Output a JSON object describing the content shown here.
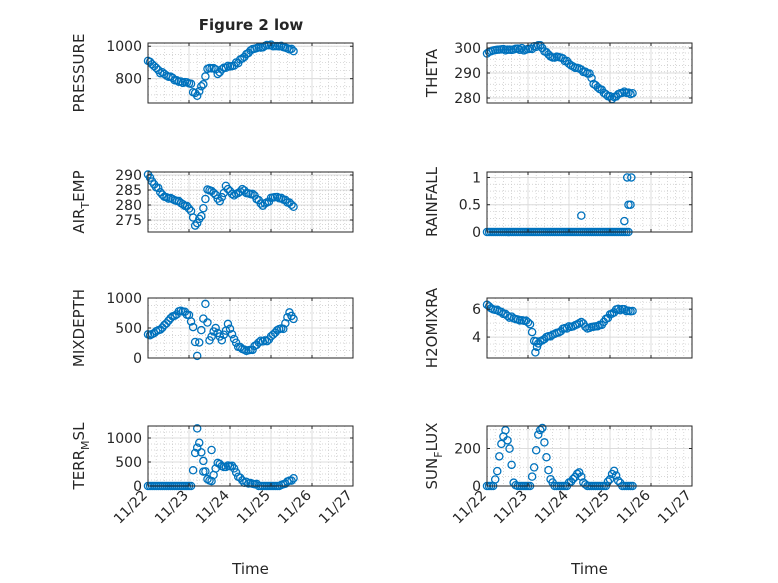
{
  "figure": {
    "title": "Figure 2 low",
    "colors": {
      "marker": "#0072BD",
      "axis": "#262626",
      "grid": "#dcdcdc"
    }
  },
  "chart_data": [
    {
      "type": "scatter",
      "title": "Figure 2 low",
      "ylabel": "PRESSURE",
      "ylabel_sub": "",
      "xlabel": "",
      "xlim": [
        0,
        5
      ],
      "ylim": [
        650,
        1020
      ],
      "xticks": [
        0,
        1,
        2,
        3,
        4,
        5
      ],
      "xticklabels": [
        "",
        "",
        "",
        "",
        "",
        ""
      ],
      "yticks": [
        800,
        1000
      ],
      "yticklabels": [
        "800",
        "1000"
      ],
      "anchors": [
        [
          0,
          910
        ],
        [
          0.1,
          895
        ],
        [
          0.3,
          840
        ],
        [
          0.5,
          815
        ],
        [
          0.7,
          790
        ],
        [
          0.8,
          780
        ],
        [
          1.05,
          775
        ],
        [
          1.1,
          710
        ],
        [
          1.2,
          700
        ],
        [
          1.35,
          770
        ],
        [
          1.45,
          860
        ],
        [
          1.6,
          870
        ],
        [
          1.7,
          830
        ],
        [
          1.85,
          870
        ],
        [
          2.05,
          880
        ],
        [
          2.2,
          900
        ],
        [
          2.4,
          950
        ],
        [
          2.6,
          990
        ],
        [
          2.9,
          1005
        ],
        [
          3.2,
          1000
        ],
        [
          3.4,
          990
        ],
        [
          3.55,
          975
        ]
      ],
      "grid": true
    },
    {
      "type": "scatter",
      "title": "",
      "ylabel": "THETA",
      "ylabel_sub": "",
      "xlabel": "",
      "xlim": [
        0,
        5
      ],
      "ylim": [
        278,
        302
      ],
      "xticks": [
        0,
        1,
        2,
        3,
        4,
        5
      ],
      "xticklabels": [
        "",
        "",
        "",
        "",
        "",
        ""
      ],
      "yticks": [
        280,
        290,
        300
      ],
      "yticklabels": [
        "280",
        "290",
        "300"
      ],
      "anchors": [
        [
          0,
          298
        ],
        [
          0.4,
          299.5
        ],
        [
          1.0,
          299.5
        ],
        [
          1.3,
          301
        ],
        [
          1.5,
          297
        ],
        [
          1.8,
          296
        ],
        [
          2.0,
          294
        ],
        [
          2.3,
          291
        ],
        [
          2.5,
          290
        ],
        [
          2.6,
          286
        ],
        [
          2.8,
          283
        ],
        [
          3.05,
          280
        ],
        [
          3.3,
          282.5
        ],
        [
          3.55,
          281.5
        ]
      ],
      "grid": true
    },
    {
      "type": "scatter",
      "title": "",
      "ylabel": "AIR",
      "ylabel_sub": "T",
      "ylabel_tail": "EMP",
      "xlabel": "",
      "xlim": [
        0,
        5
      ],
      "ylim": [
        271,
        291
      ],
      "xticks": [
        0,
        1,
        2,
        3,
        4,
        5
      ],
      "xticklabels": [
        "",
        "",
        "",
        "",
        "",
        ""
      ],
      "yticks": [
        275,
        280,
        285,
        290
      ],
      "yticklabels": [
        "275",
        "280",
        "285",
        "290"
      ],
      "anchors": [
        [
          0,
          290
        ],
        [
          0.15,
          287
        ],
        [
          0.4,
          283
        ],
        [
          0.6,
          282
        ],
        [
          0.9,
          280
        ],
        [
          1.05,
          278
        ],
        [
          1.15,
          273
        ],
        [
          1.3,
          276
        ],
        [
          1.45,
          285
        ],
        [
          1.6,
          284
        ],
        [
          1.75,
          281
        ],
        [
          1.9,
          286
        ],
        [
          2.1,
          283
        ],
        [
          2.3,
          285
        ],
        [
          2.6,
          283
        ],
        [
          2.8,
          280
        ],
        [
          3.1,
          283
        ],
        [
          3.3,
          282
        ],
        [
          3.55,
          279.5
        ]
      ],
      "grid": true
    },
    {
      "type": "scatter",
      "title": "",
      "ylabel": "RAINFALL",
      "ylabel_sub": "",
      "xlabel": "",
      "xlim": [
        0,
        5
      ],
      "ylim": [
        0,
        1.1
      ],
      "xticks": [
        0,
        1,
        2,
        3,
        4,
        5
      ],
      "xticklabels": [
        "",
        "",
        "",
        "",
        "",
        ""
      ],
      "yticks": [
        0,
        0.5,
        1
      ],
      "yticklabels": [
        "0",
        "0.5",
        "1"
      ],
      "anchors": [
        [
          0,
          0
        ],
        [
          3.45,
          0
        ]
      ],
      "extra_points": [
        [
          2.3,
          0.3
        ],
        [
          3.35,
          0.2
        ],
        [
          3.45,
          0.5
        ],
        [
          3.5,
          0.5
        ],
        [
          3.42,
          1.0
        ],
        [
          3.52,
          1.0
        ]
      ],
      "grid": true
    },
    {
      "type": "scatter",
      "title": "",
      "ylabel": "MIXDEPTH",
      "ylabel_sub": "",
      "xlabel": "",
      "xlim": [
        0,
        5
      ],
      "ylim": [
        0,
        1000
      ],
      "xticks": [
        0,
        1,
        2,
        3,
        4,
        5
      ],
      "xticklabels": [
        "",
        "",
        "",
        "",
        "",
        ""
      ],
      "yticks": [
        0,
        500,
        1000
      ],
      "yticklabels": [
        "0",
        "500",
        "1000"
      ],
      "anchors": [
        [
          0,
          380
        ],
        [
          0.2,
          430
        ],
        [
          0.4,
          550
        ],
        [
          0.6,
          700
        ],
        [
          0.8,
          790
        ],
        [
          1.0,
          720
        ],
        [
          1.1,
          520
        ],
        [
          1.2,
          50
        ],
        [
          1.3,
          450
        ],
        [
          1.4,
          900
        ],
        [
          1.5,
          300
        ],
        [
          1.65,
          500
        ],
        [
          1.8,
          280
        ],
        [
          1.95,
          550
        ],
        [
          2.05,
          400
        ],
        [
          2.2,
          200
        ],
        [
          2.35,
          120
        ],
        [
          2.55,
          150
        ],
        [
          2.75,
          280
        ],
        [
          2.95,
          300
        ],
        [
          3.15,
          470
        ],
        [
          3.3,
          500
        ],
        [
          3.45,
          750
        ],
        [
          3.55,
          650
        ]
      ],
      "grid": true
    },
    {
      "type": "scatter",
      "title": "",
      "ylabel": "H2OMIXRA",
      "ylabel_sub": "",
      "xlabel": "",
      "xlim": [
        0,
        5
      ],
      "ylim": [
        2.5,
        6.8
      ],
      "xticks": [
        0,
        1,
        2,
        3,
        4,
        5
      ],
      "xticklabels": [
        "",
        "",
        "",
        "",
        "",
        ""
      ],
      "yticks": [
        4,
        6
      ],
      "yticklabels": [
        "4",
        "6"
      ],
      "anchors": [
        [
          0,
          6.3
        ],
        [
          0.3,
          5.8
        ],
        [
          0.6,
          5.4
        ],
        [
          0.9,
          5.2
        ],
        [
          1.05,
          4.9
        ],
        [
          1.15,
          3.8
        ],
        [
          1.25,
          3.6
        ],
        [
          1.45,
          4.0
        ],
        [
          1.65,
          4.2
        ],
        [
          1.85,
          4.6
        ],
        [
          2.05,
          4.8
        ],
        [
          2.3,
          5.0
        ],
        [
          2.5,
          4.6
        ],
        [
          2.75,
          4.8
        ],
        [
          3.0,
          5.6
        ],
        [
          3.2,
          6.0
        ],
        [
          3.55,
          5.9
        ]
      ],
      "extra_points": [
        [
          1.18,
          2.9
        ],
        [
          1.22,
          3.3
        ]
      ],
      "grid": true
    },
    {
      "type": "scatter",
      "title": "",
      "ylabel": "TERR",
      "ylabel_sub": "M",
      "ylabel_tail": "SL",
      "xlabel": "Time",
      "xlim": [
        0,
        5
      ],
      "ylim": [
        0,
        1250
      ],
      "xticks": [
        0,
        1,
        2,
        3,
        4,
        5
      ],
      "xticklabels": [
        "11/22",
        "11/23",
        "11/24",
        "11/25",
        "11/26",
        "11/27"
      ],
      "yticks": [
        0,
        500,
        1000
      ],
      "yticklabels": [
        "0",
        "500",
        "1000"
      ],
      "anchors": [
        [
          0,
          0
        ],
        [
          1.05,
          0
        ],
        [
          1.15,
          700
        ],
        [
          1.25,
          900
        ],
        [
          1.35,
          500
        ],
        [
          1.45,
          150
        ],
        [
          1.55,
          120
        ],
        [
          1.7,
          500
        ],
        [
          1.85,
          400
        ],
        [
          2.05,
          420
        ],
        [
          2.2,
          200
        ],
        [
          2.35,
          80
        ],
        [
          2.55,
          50
        ],
        [
          2.75,
          0
        ],
        [
          3.2,
          0
        ],
        [
          3.4,
          80
        ],
        [
          3.55,
          150
        ]
      ],
      "extra_points": [
        [
          1.2,
          1200
        ],
        [
          1.55,
          750
        ],
        [
          1.35,
          300
        ]
      ],
      "grid": true
    },
    {
      "type": "scatter",
      "title": "",
      "ylabel": "SUN",
      "ylabel_sub": "F",
      "ylabel_tail": "LUX",
      "xlabel": "Time",
      "xlim": [
        0,
        5
      ],
      "ylim": [
        0,
        320
      ],
      "xticks": [
        0,
        1,
        2,
        3,
        4,
        5
      ],
      "xticklabels": [
        "11/22",
        "11/23",
        "11/24",
        "11/25",
        "11/26",
        "11/27"
      ],
      "yticks": [
        0,
        200
      ],
      "yticklabels": [
        "0",
        "200"
      ],
      "anchors": [
        [
          0,
          0
        ],
        [
          0.15,
          0
        ],
        [
          0.25,
          80
        ],
        [
          0.35,
          230
        ],
        [
          0.45,
          300
        ],
        [
          0.55,
          200
        ],
        [
          0.65,
          20
        ],
        [
          0.75,
          0
        ],
        [
          1.05,
          0
        ],
        [
          1.15,
          100
        ],
        [
          1.25,
          280
        ],
        [
          1.35,
          310
        ],
        [
          1.45,
          150
        ],
        [
          1.55,
          30
        ],
        [
          1.65,
          0
        ],
        [
          1.95,
          0
        ],
        [
          2.1,
          40
        ],
        [
          2.25,
          70
        ],
        [
          2.35,
          20
        ],
        [
          2.45,
          0
        ],
        [
          2.9,
          0
        ],
        [
          3.0,
          40
        ],
        [
          3.1,
          80
        ],
        [
          3.2,
          30
        ],
        [
          3.3,
          0
        ],
        [
          3.55,
          0
        ]
      ],
      "grid": true
    }
  ]
}
